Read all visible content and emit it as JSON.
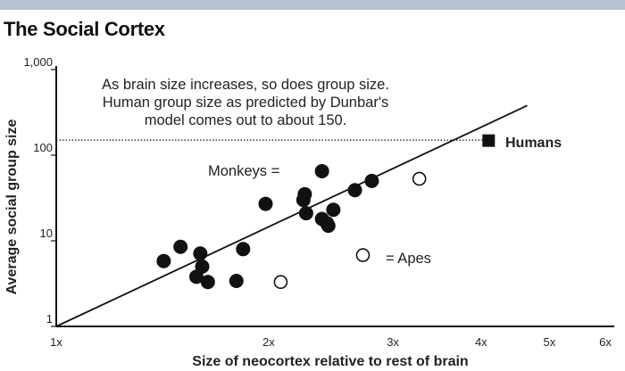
{
  "header": {
    "title": "The Social Cortex"
  },
  "colors": {
    "topbar": "#b5c3d0",
    "marker": "#111111",
    "line": "#111111",
    "background": "#ffffff"
  },
  "chart_data": {
    "type": "scatter",
    "title": "The Social Cortex",
    "xlabel": "Size of neocortex relative to rest of brain",
    "ylabel": "Average social group size",
    "x_scale": "log",
    "y_scale": "log",
    "xlim": [
      1,
      6
    ],
    "ylim": [
      1,
      1000
    ],
    "x_ticks": [
      {
        "value": 1,
        "label": "1x"
      },
      {
        "value": 2,
        "label": "2x"
      },
      {
        "value": 3,
        "label": "3x"
      },
      {
        "value": 4,
        "label": "4x"
      },
      {
        "value": 5,
        "label": "5x"
      },
      {
        "value": 6,
        "label": "6x"
      }
    ],
    "y_ticks": [
      {
        "value": 1,
        "label": "1"
      },
      {
        "value": 10,
        "label": "10"
      },
      {
        "value": 100,
        "label": "100"
      },
      {
        "value": 1000,
        "label": "1,000"
      }
    ],
    "annotation_lines": [
      "As brain size increases, so does group size.",
      "Human group size as predicted by Dunbar's",
      "model comes out to about 150."
    ],
    "reference_line": {
      "y": 150,
      "style": "dotted"
    },
    "trend_line": {
      "points": [
        [
          1,
          1
        ],
        [
          4.65,
          380
        ]
      ]
    },
    "series": [
      {
        "name": "Monkeys",
        "legend_label": "Monkeys =",
        "marker": "filled-circle",
        "points": [
          [
            1.42,
            5.8
          ],
          [
            1.5,
            8.5
          ],
          [
            1.58,
            3.8
          ],
          [
            1.6,
            7.1
          ],
          [
            1.61,
            5.0
          ],
          [
            1.64,
            3.3
          ],
          [
            1.8,
            3.4
          ],
          [
            1.84,
            8.0
          ],
          [
            1.98,
            27
          ],
          [
            2.24,
            30
          ],
          [
            2.25,
            35
          ],
          [
            2.26,
            21
          ],
          [
            2.38,
            65
          ],
          [
            2.38,
            18
          ],
          [
            2.42,
            16
          ],
          [
            2.43,
            15
          ],
          [
            2.47,
            23
          ],
          [
            2.65,
            39
          ],
          [
            2.8,
            50
          ]
        ]
      },
      {
        "name": "Apes",
        "legend_label": "= Apes",
        "marker": "open-circle",
        "points": [
          [
            2.08,
            3.3
          ],
          [
            2.72,
            6.8
          ],
          [
            3.27,
            53
          ]
        ]
      },
      {
        "name": "Humans",
        "legend_label": "Humans",
        "marker": "filled-square",
        "points": [
          [
            4.1,
            148
          ]
        ]
      }
    ]
  }
}
